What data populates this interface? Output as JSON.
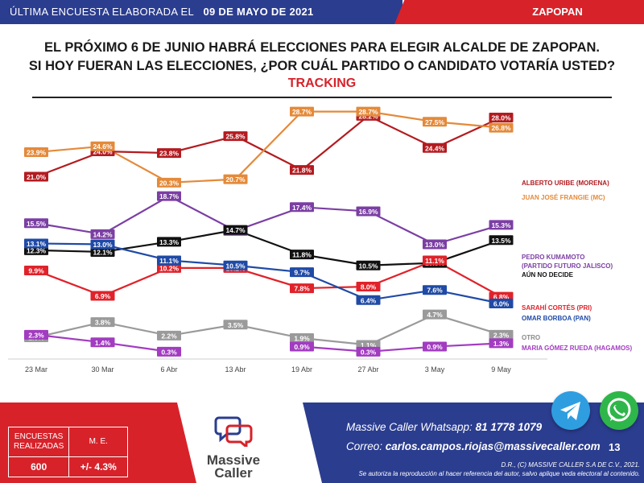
{
  "header": {
    "survey_date_label": "ÚLTIMA ENCUESTA ELABORADA EL",
    "survey_date": "09 DE MAYO DE 2021",
    "city": "ZAPOPAN"
  },
  "question_line1": "EL PRÓXIMO 6 DE JUNIO HABRÁ ELECCIONES PARA ELEGIR ALCALDE DE ZAPOPAN.",
  "question_line2": "SI HOY FUERAN LAS ELECCIONES, ¿POR CUÁL PARTIDO O CANDIDATO VOTARÍA USTED?",
  "tracking_label": "TRACKING",
  "chart_data": {
    "type": "line",
    "categories": [
      "23 Mar",
      "30 Mar",
      "6 Abr",
      "13 Abr",
      "19 Abr",
      "27 Abr",
      "3 May",
      "9 May"
    ],
    "ylim": [
      0,
      32
    ],
    "grid": false,
    "legend": "end-of-line labels at right",
    "series": [
      {
        "name": "ALBERTO URIBE (MORENA)",
        "color": "#b31b20",
        "label_color": "#b31b20",
        "values": [
          21.0,
          24.0,
          23.8,
          25.8,
          21.8,
          28.2,
          24.4,
          28.0
        ]
      },
      {
        "name": "JUAN JOSÉ FRANGIE (MC)",
        "color": "#e48a3a",
        "label_color": "#e48a3a",
        "values": [
          23.9,
          24.6,
          20.3,
          20.7,
          28.7,
          28.7,
          27.5,
          26.8
        ]
      },
      {
        "name": "PEDRO KUMAMOTO (PARTIDO FUTURO JALISCO)",
        "color": "#7b3fa3",
        "label_color": "#7b3fa3",
        "values": [
          15.5,
          14.2,
          18.7,
          14.6,
          17.4,
          16.9,
          13.0,
          15.3
        ]
      },
      {
        "name": "AÚN NO DECIDE",
        "color": "#111111",
        "label_color": "#111111",
        "values": [
          12.3,
          12.1,
          13.3,
          14.7,
          11.8,
          10.5,
          10.8,
          13.5
        ]
      },
      {
        "name": "SARAHÍ CORTÉS (PRI)",
        "color": "#e0222a",
        "label_color": "#e0222a",
        "values": [
          9.9,
          6.9,
          10.2,
          10.2,
          7.8,
          8.0,
          11.1,
          6.8
        ]
      },
      {
        "name": "OMAR BORBOA (PAN)",
        "color": "#1f4aa6",
        "label_color": "#1f4aa6",
        "values": [
          13.1,
          13.0,
          11.1,
          10.5,
          9.7,
          6.4,
          7.6,
          6.0
        ]
      },
      {
        "name": "OTRO",
        "color": "#9a9a9a",
        "label_color": "#8a8a8a",
        "values": [
          2.0,
          3.8,
          2.2,
          3.5,
          1.9,
          1.1,
          4.7,
          2.3
        ]
      },
      {
        "name": "MARIA GÓMEZ RUEDA (HAGAMOS)",
        "color": "#a23cc0",
        "label_color": "#a23cc0",
        "values": [
          2.3,
          1.4,
          0.3,
          null,
          0.9,
          0.3,
          0.9,
          1.3
        ]
      }
    ]
  },
  "stats": {
    "h1": "ENCUESTAS REALIZADAS",
    "h2": "M. E.",
    "v1": "600",
    "v2": "+/- 4.3%"
  },
  "logo": {
    "line1": "Massive",
    "line2": "Caller"
  },
  "contact": {
    "whatsapp_label": "Massive Caller Whatsapp:",
    "whatsapp": "81 1778 1079",
    "email_label": "Correo:",
    "email": "carlos.campos.riojas@massivecaller.com"
  },
  "page_number": "13",
  "legal1": "D.R., (C) MASSIVE CALLER S.A DE C.V., 2021.",
  "legal2": "Se autoriza la reproducción al hacer referencia del autor, salvo aplique veda electoral al contenido.",
  "icons": {
    "telegram": "telegram-icon",
    "whatsapp": "whatsapp-icon",
    "logo": "chat-bubbles-icon"
  },
  "colors": {
    "brand_blue": "#2b3d8f",
    "brand_red": "#d7222a"
  }
}
